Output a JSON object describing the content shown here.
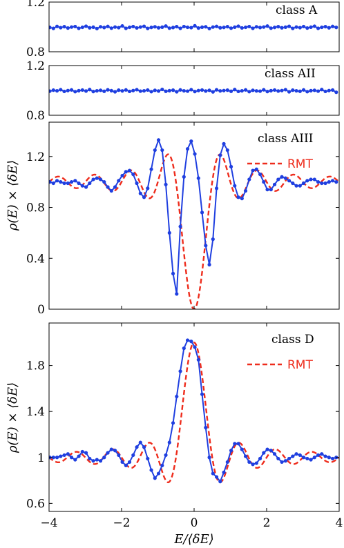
{
  "colors": {
    "data": "#1f3fe0",
    "rmt": "#ee2c1c",
    "axis": "#000000"
  },
  "xaxis": {
    "label": "E/⟨δE⟩",
    "ticks": [
      -4,
      -2,
      0,
      2,
      4
    ],
    "tick_labels": [
      "−4",
      "−2",
      "0",
      "2",
      "4"
    ],
    "range": [
      -4,
      4
    ]
  },
  "ylabel": "ρ(E) × ⟨δE⟩",
  "chart_data": [
    {
      "type": "line",
      "panel_label": "class A",
      "ylim": [
        0.8,
        1.2
      ],
      "yticks": [
        0.8,
        1.2
      ],
      "ytick_labels": [
        "0.8",
        "1.2"
      ],
      "series": [
        {
          "kind": "data",
          "x_start": -3.98,
          "x_step": 0.1,
          "values": [
            0.996,
            0.988,
            1.004,
            0.994,
            1.002,
            0.991,
            0.999,
            1.003,
            0.989,
            0.997,
            1.006,
            0.993,
            0.998,
            0.987,
            1.001,
            0.995,
            1.004,
            0.99,
            0.999,
            0.994,
            1.008,
            0.989,
            0.997,
            1.003,
            0.992,
            0.999,
            1.005,
            0.988,
            0.996,
            1.001,
            0.993,
            0.998,
            1.007,
            0.99,
            0.995,
            1.002,
            0.989,
            1.003,
            0.997,
            0.994,
            1.009,
            0.991,
            0.998,
            1.001,
            0.987,
            0.999,
            1.004,
            0.993,
            0.996,
            1.002,
            0.99,
            0.998,
            1.006,
            0.992,
            0.997,
            1.003,
            0.989,
            1.001,
            0.995,
            0.999,
            1.007,
            0.99,
            0.996,
            1.002,
            0.993,
            0.998,
            1.005,
            0.988,
            0.999,
            0.994,
            1.003,
            0.991,
            0.998,
            1.006,
            0.989,
            0.997,
            1.002,
            0.993,
            1.004,
            0.996
          ]
        }
      ]
    },
    {
      "type": "line",
      "panel_label": "class AII",
      "ylim": [
        0.8,
        1.2
      ],
      "yticks": [
        0.8,
        1.2
      ],
      "ytick_labels": [
        "0.8",
        "1.2"
      ],
      "series": [
        {
          "kind": "data",
          "x_start": -3.98,
          "x_step": 0.1,
          "values": [
            0.994,
            1.002,
            0.997,
            1.006,
            0.992,
            0.999,
            1.004,
            0.99,
            0.998,
            1.003,
            0.995,
            1.007,
            0.991,
            0.997,
            1.001,
            0.993,
            1.005,
            0.998,
            0.989,
            1.002,
            0.996,
            1.004,
            0.992,
            0.999,
            1.006,
            0.994,
            0.997,
            1.003,
            0.99,
            1.001,
            0.995,
            1.008,
            0.993,
            0.998,
            1.002,
            0.989,
            1.004,
            0.997,
            0.994,
            1.006,
            0.991,
            0.999,
            1.003,
            0.995,
            1.001,
            0.988,
            1.005,
            0.996,
            0.999,
            1.002,
            0.993,
            1.007,
            0.992,
            0.997,
            1.004,
            0.99,
            1.001,
            0.996,
            0.994,
            1.005,
            0.991,
            0.998,
            1.003,
            0.995,
            0.999,
            1.006,
            0.989,
            1.002,
            0.997,
            0.993,
            1.004,
            0.99,
            0.998,
            1.001,
            0.994,
            1.007,
            0.992,
            0.999,
            1.003,
            0.985
          ]
        }
      ]
    },
    {
      "type": "line",
      "panel_label": "class AIII",
      "ylim": [
        0,
        1.47
      ],
      "yticks": [
        0,
        0.4,
        0.8,
        1.2
      ],
      "ytick_labels": [
        "0",
        "0.4",
        "0.8",
        "1.2"
      ],
      "legend": [
        "RMT"
      ],
      "series": [
        {
          "kind": "data",
          "x": [
            -3.98,
            -3.88,
            -3.78,
            -3.68,
            -3.58,
            -3.48,
            -3.38,
            -3.28,
            -3.18,
            -3.08,
            -2.98,
            -2.88,
            -2.78,
            -2.68,
            -2.58,
            -2.48,
            -2.38,
            -2.28,
            -2.18,
            -2.08,
            -1.98,
            -1.88,
            -1.78,
            -1.68,
            -1.58,
            -1.48,
            -1.38,
            -1.28,
            -1.18,
            -1.08,
            -0.98,
            -0.88,
            -0.78,
            -0.68,
            -0.58,
            -0.48,
            -0.38,
            -0.28,
            -0.18,
            -0.08,
            0.02,
            0.12,
            0.22,
            0.32,
            0.42,
            0.52,
            0.62,
            0.72,
            0.82,
            0.92,
            1.02,
            1.12,
            1.22,
            1.32,
            1.42,
            1.52,
            1.62,
            1.72,
            1.82,
            1.92,
            2.02,
            2.12,
            2.22,
            2.32,
            2.42,
            2.52,
            2.62,
            2.72,
            2.82,
            2.92,
            3.02,
            3.12,
            3.22,
            3.32,
            3.42,
            3.52,
            3.62,
            3.72,
            3.82,
            3.92
          ],
          "values": [
            1.0,
            0.99,
            1.01,
            1.0,
            0.99,
            0.99,
            1.0,
            1.01,
            0.99,
            0.97,
            0.96,
            0.99,
            1.02,
            1.03,
            1.02,
            1.0,
            0.96,
            0.93,
            0.96,
            1.01,
            1.05,
            1.08,
            1.09,
            1.06,
            0.99,
            0.91,
            0.88,
            0.95,
            1.1,
            1.25,
            1.33,
            1.25,
            0.98,
            0.6,
            0.28,
            0.12,
            0.65,
            1.04,
            1.26,
            1.32,
            1.22,
            1.03,
            0.76,
            0.5,
            0.35,
            0.55,
            0.95,
            1.21,
            1.3,
            1.25,
            1.12,
            0.97,
            0.88,
            0.87,
            0.93,
            1.02,
            1.09,
            1.1,
            1.06,
            1.0,
            0.94,
            0.94,
            0.98,
            1.02,
            1.04,
            1.03,
            1.01,
            0.99,
            0.97,
            0.97,
            0.99,
            1.01,
            1.02,
            1.02,
            1.0,
            0.99,
            0.99,
            1.0,
            1.01,
            1.0
          ]
        },
        {
          "kind": "rmt",
          "name": "RMT",
          "formula": "1 - sin(2πE)/(2πE)",
          "sample_step": 0.02
        }
      ]
    },
    {
      "type": "line",
      "panel_label": "class D",
      "ylim": [
        0.53,
        2.17
      ],
      "yticks": [
        0.6,
        1,
        1.4,
        1.8
      ],
      "ytick_labels": [
        "0.6",
        "1",
        "1.4",
        "1.8"
      ],
      "legend": [
        "RMT"
      ],
      "series": [
        {
          "kind": "data",
          "x": [
            -3.98,
            -3.88,
            -3.78,
            -3.68,
            -3.58,
            -3.48,
            -3.38,
            -3.28,
            -3.18,
            -3.08,
            -2.98,
            -2.88,
            -2.78,
            -2.68,
            -2.58,
            -2.48,
            -2.38,
            -2.28,
            -2.18,
            -2.08,
            -1.98,
            -1.88,
            -1.78,
            -1.68,
            -1.58,
            -1.48,
            -1.38,
            -1.28,
            -1.18,
            -1.08,
            -0.98,
            -0.88,
            -0.78,
            -0.68,
            -0.58,
            -0.48,
            -0.38,
            -0.28,
            -0.18,
            -0.08,
            0.02,
            0.12,
            0.22,
            0.32,
            0.42,
            0.52,
            0.62,
            0.72,
            0.82,
            0.92,
            1.02,
            1.12,
            1.22,
            1.32,
            1.42,
            1.52,
            1.62,
            1.72,
            1.82,
            1.92,
            2.02,
            2.12,
            2.22,
            2.32,
            2.42,
            2.52,
            2.62,
            2.72,
            2.82,
            2.92,
            3.02,
            3.12,
            3.22,
            3.32,
            3.42,
            3.52,
            3.62,
            3.72,
            3.82,
            3.92
          ],
          "values": [
            1.0,
            1.0,
            1.0,
            1.01,
            1.02,
            1.03,
            1.0,
            0.98,
            1.01,
            1.05,
            1.04,
            0.99,
            0.97,
            0.98,
            0.97,
            1.0,
            1.04,
            1.07,
            1.06,
            1.02,
            0.96,
            0.93,
            0.96,
            1.02,
            1.09,
            1.13,
            1.09,
            0.99,
            0.89,
            0.82,
            0.86,
            0.93,
            1.02,
            1.13,
            1.3,
            1.53,
            1.75,
            1.95,
            2.02,
            2.01,
            1.96,
            1.85,
            1.55,
            1.26,
            1.0,
            0.86,
            0.83,
            0.79,
            0.87,
            0.96,
            1.06,
            1.12,
            1.12,
            1.07,
            1.01,
            0.96,
            0.94,
            0.95,
            0.99,
            1.04,
            1.07,
            1.06,
            1.03,
            0.99,
            0.96,
            0.97,
            0.99,
            1.01,
            1.03,
            1.02,
            1.0,
            0.99,
            0.98,
            1.0,
            1.02,
            1.03,
            1.01,
            1.0,
            0.99,
            1.0
          ]
        },
        {
          "kind": "rmt",
          "name": "RMT",
          "formula": "1 + sin(2πE)/(2πE)",
          "sample_step": 0.02
        }
      ]
    }
  ]
}
